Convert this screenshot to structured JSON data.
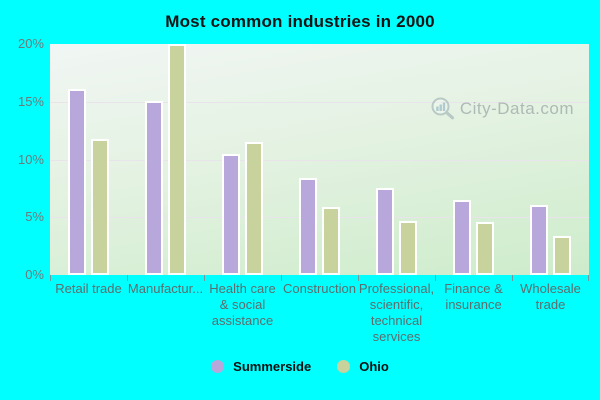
{
  "title": "Most common industries in 2000",
  "watermark": {
    "text": "City-Data.com"
  },
  "colors": {
    "background": "#00ffff",
    "plot_top": "#f1f6f4",
    "plot_bottom": "#cdeccb",
    "gridline": "#e9e3ec",
    "summerside": "#b7a7da",
    "ohio": "#c7d29c"
  },
  "chart_data": {
    "type": "bar",
    "title": "Most common industries in 2000",
    "categories": [
      "Retail trade",
      "Manufactur...",
      "Health care & social assistance",
      "Construction",
      "Professional, scientific, technical services",
      "Finance & insurance",
      "Wholesale trade"
    ],
    "series": [
      {
        "name": "Summerside",
        "color": "#b7a7da",
        "values": [
          16.1,
          15.1,
          10.5,
          8.4,
          7.5,
          6.5,
          6.1
        ]
      },
      {
        "name": "Ohio",
        "color": "#c7d29c",
        "values": [
          11.8,
          20.0,
          11.5,
          5.9,
          4.7,
          4.6,
          3.4
        ]
      }
    ],
    "ylabel": "",
    "xlabel": "",
    "ylim": [
      0,
      20
    ],
    "y_ticks": [
      "20%",
      "15%",
      "10%",
      "5%",
      "0%"
    ],
    "grid": true,
    "legend_position": "bottom"
  }
}
